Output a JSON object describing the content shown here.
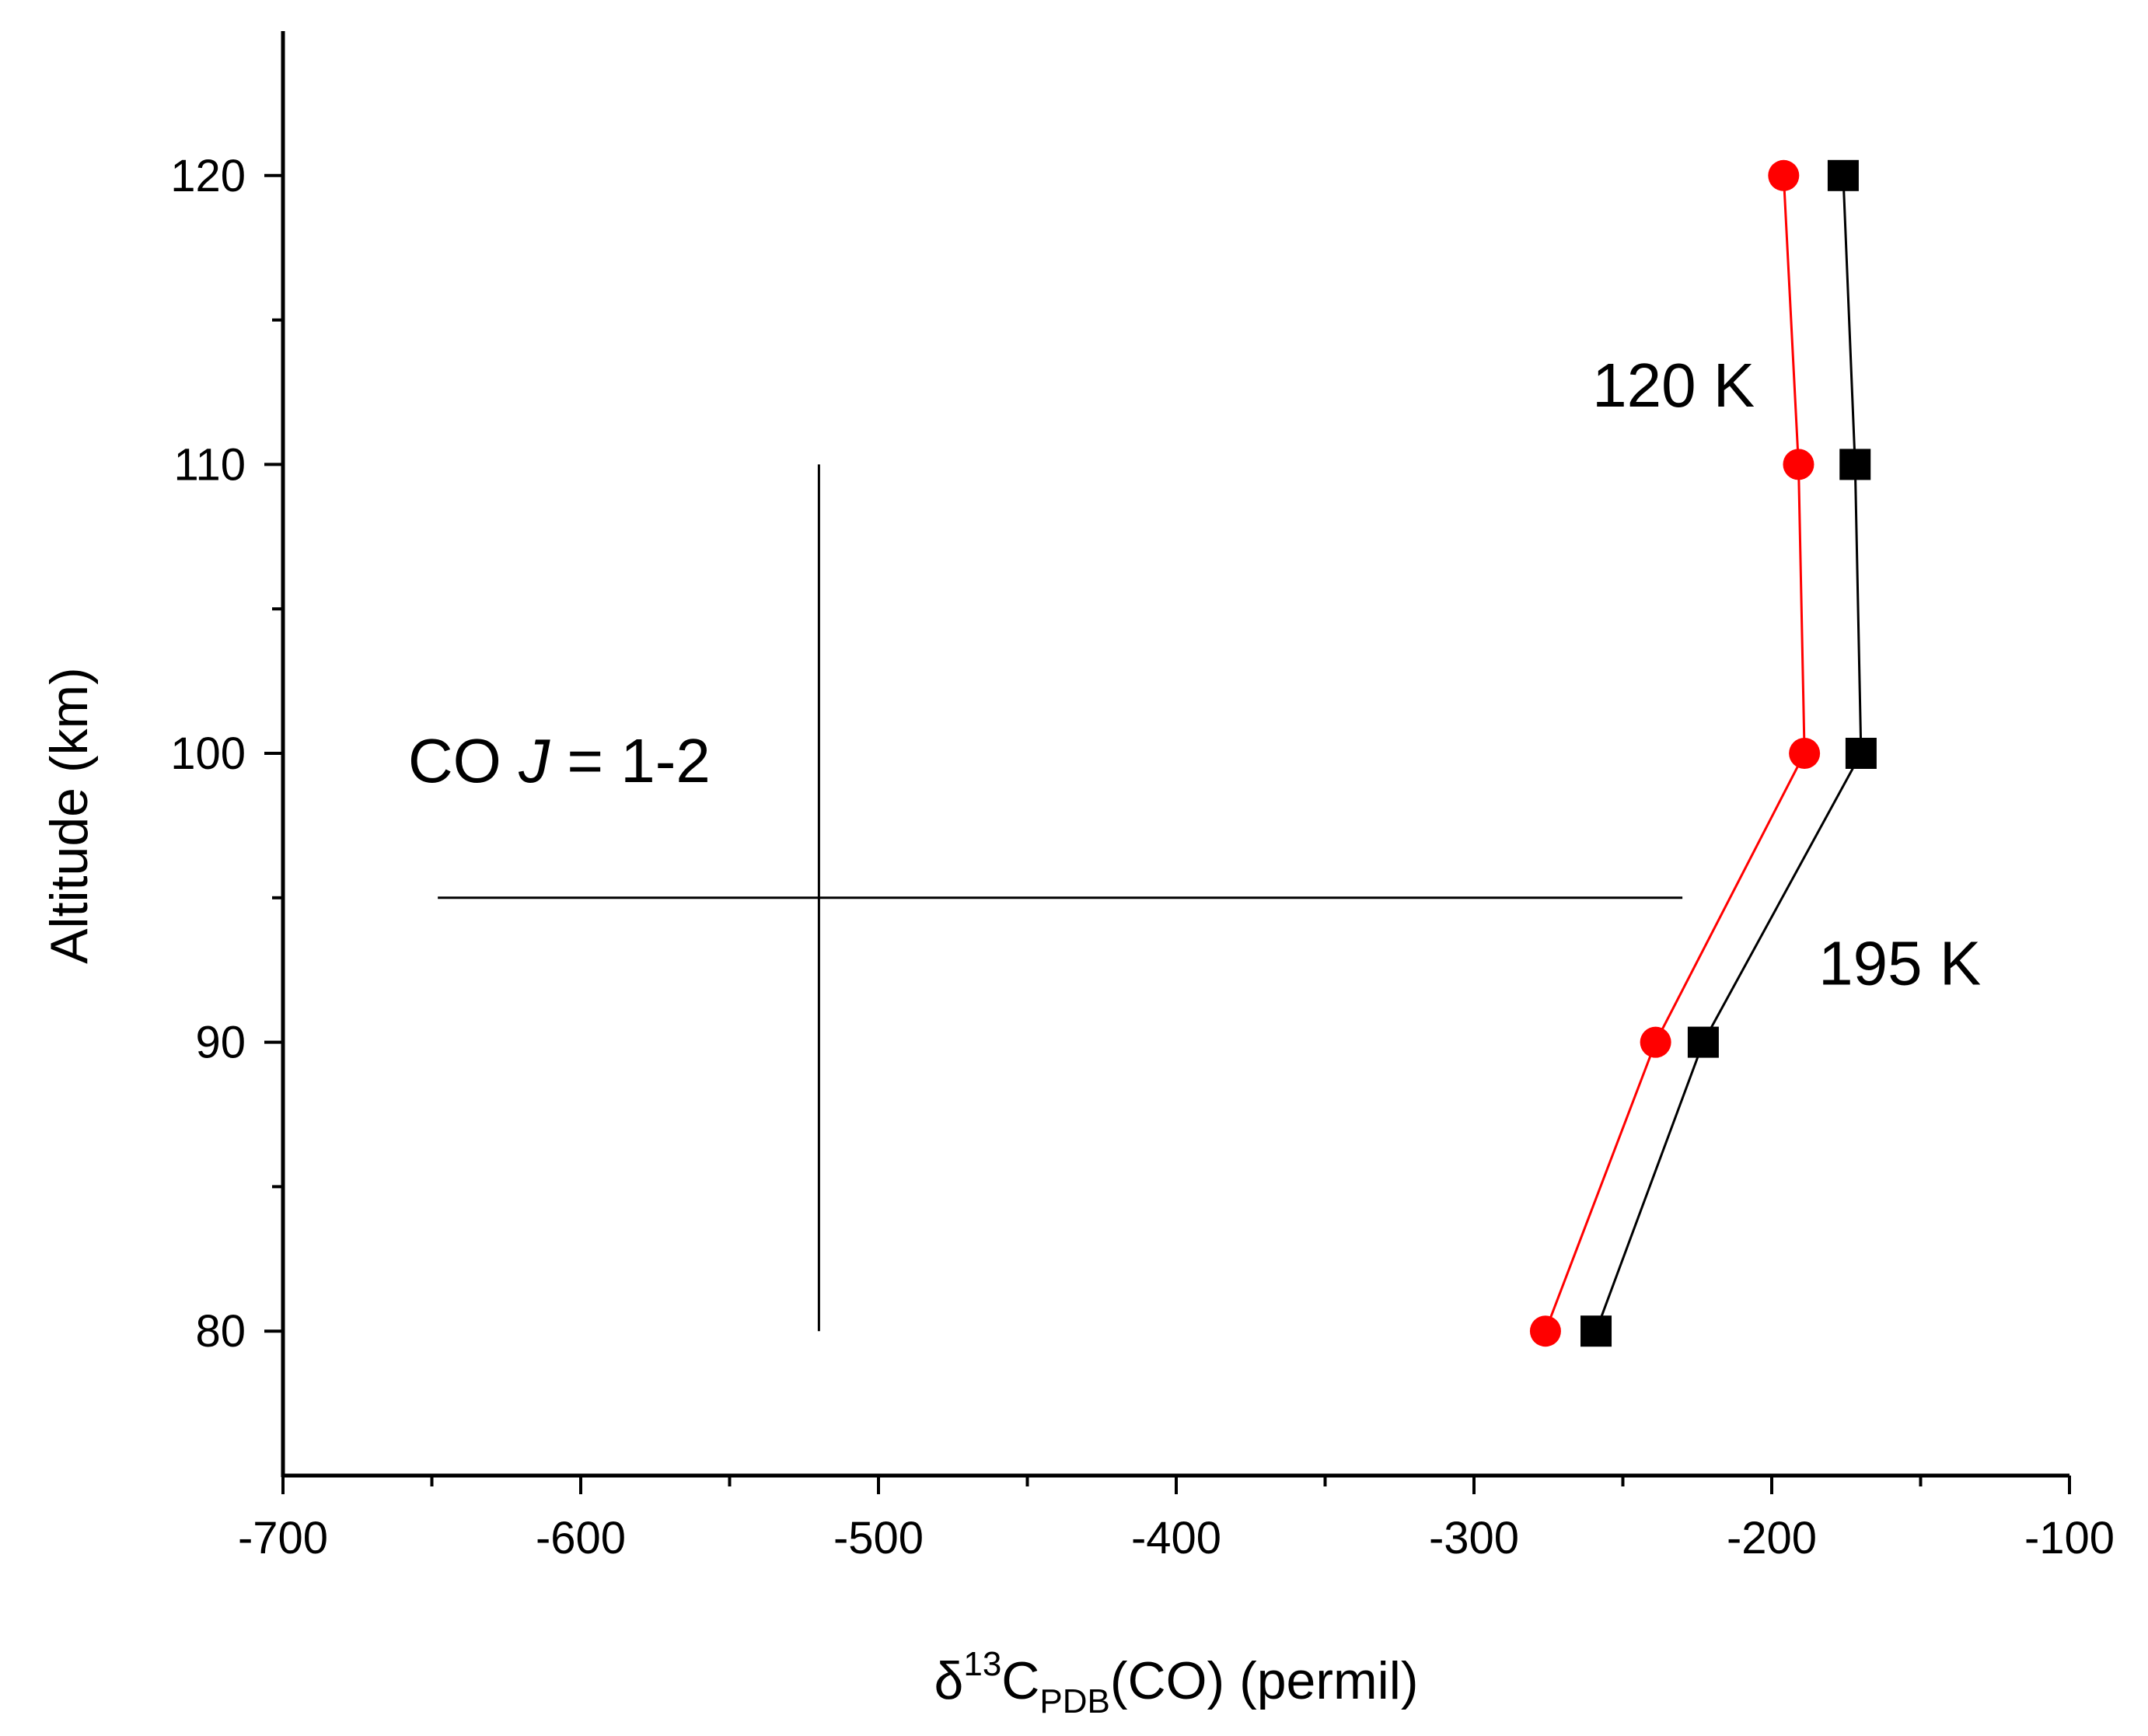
{
  "chart_data": {
    "type": "line",
    "xlabel": {
      "delta": "δ",
      "superscript": "13",
      "letter": "C",
      "subscript": "PDB",
      "rest": "(CO) (permil)"
    },
    "ylabel": "Altitude (km)",
    "xlim": [
      -700,
      -100
    ],
    "ylim": [
      75,
      125
    ],
    "xticks_major": [
      -700,
      -600,
      -500,
      -400,
      -300,
      -200,
      -100
    ],
    "xticks_minor": [
      -650,
      -550,
      -450,
      -350,
      -250,
      -150
    ],
    "yticks_major": [
      80,
      90,
      100,
      110,
      120
    ],
    "yticks_minor": [
      85,
      95,
      105,
      115
    ],
    "series": [
      {
        "name": "120 K",
        "color": "#ff0000",
        "marker": "circle",
        "points": [
          {
            "x": -276,
            "y": 80
          },
          {
            "x": -239,
            "y": 90
          },
          {
            "x": -189,
            "y": 100
          },
          {
            "x": -191,
            "y": 110
          },
          {
            "x": -196,
            "y": 120
          }
        ]
      },
      {
        "name": "195 K",
        "color": "#000000",
        "marker": "square",
        "points": [
          {
            "x": -259,
            "y": 80
          },
          {
            "x": -223,
            "y": 90
          },
          {
            "x": -170,
            "y": 100
          },
          {
            "x": -172,
            "y": 110
          },
          {
            "x": -176,
            "y": 120
          }
        ]
      }
    ],
    "series_labels": [
      {
        "text": "120 K",
        "color": "#ff0000",
        "x": -233,
        "y": 112
      },
      {
        "text": "195 K",
        "color": "#000000",
        "x": -157,
        "y": 92
      }
    ],
    "annotation": {
      "prefix": "CO ",
      "italic": "J",
      "suffix": " = 1-2",
      "x": -658,
      "y": 99
    },
    "error_cross": {
      "center_x": -520,
      "center_y": 95,
      "x_min": -648,
      "x_max": -230,
      "y_min": 80,
      "y_max": 110
    }
  }
}
